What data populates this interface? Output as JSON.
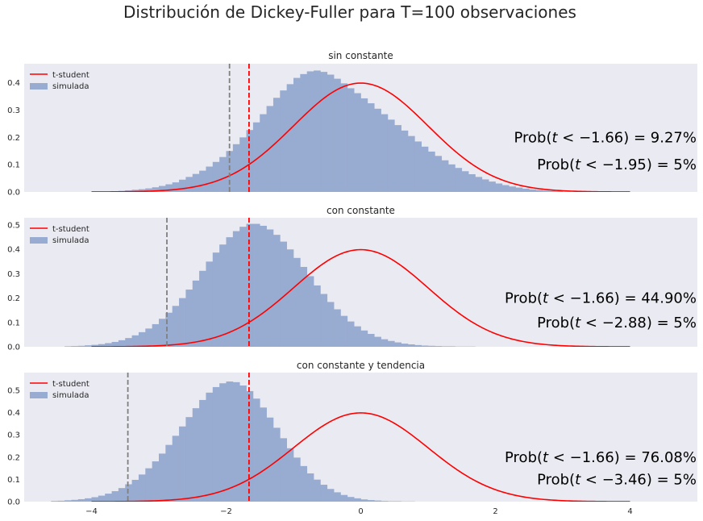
{
  "figure": {
    "title": "Distribución de Dickey-Fuller para T=100 observaciones"
  },
  "colors": {
    "background": "#eaeaf2",
    "histogram": "#98abd0",
    "pdf_line": "#ff0000",
    "observed_line": "#ff0000",
    "critical_line": "#808080"
  },
  "chart_data": [
    {
      "type": "histogram",
      "title": "sin constante",
      "xlim": [
        -5,
        5
      ],
      "ylim": [
        0,
        0.47
      ],
      "yticks": [
        0.0,
        0.1,
        0.2,
        0.3,
        0.4
      ],
      "ytick_labels": [
        "0.0",
        "0.1",
        "0.2",
        "0.3",
        "0.4"
      ],
      "grid": false,
      "legend": {
        "position": "top-left",
        "entries": [
          "t-student",
          "simulada"
        ]
      },
      "series": [
        {
          "name": "simulada",
          "kind": "histogram",
          "bin_starts": [
            -3.6,
            -3.5,
            -3.4,
            -3.3,
            -3.2,
            -3.1,
            -3.0,
            -2.9,
            -2.8,
            -2.7,
            -2.6,
            -2.5,
            -2.4,
            -2.3,
            -2.2,
            -2.1,
            -2.0,
            -1.9,
            -1.8,
            -1.7,
            -1.6,
            -1.5,
            -1.4,
            -1.3,
            -1.2,
            -1.1,
            -1.0,
            -0.9,
            -0.8,
            -0.7,
            -0.6,
            -0.5,
            -0.4,
            -0.3,
            -0.2,
            -0.1,
            0.0,
            0.1,
            0.2,
            0.3,
            0.4,
            0.5,
            0.6,
            0.7,
            0.8,
            0.9,
            1.0,
            1.1,
            1.2,
            1.3,
            1.4,
            1.5,
            1.6,
            1.7,
            1.8,
            1.9,
            2.0,
            2.1,
            2.2,
            2.3,
            2.4,
            2.5,
            2.6,
            2.7,
            2.8,
            2.9
          ],
          "bin_width": 0.1,
          "values": [
            0.004,
            0.006,
            0.008,
            0.01,
            0.013,
            0.017,
            0.022,
            0.028,
            0.035,
            0.045,
            0.055,
            0.066,
            0.078,
            0.093,
            0.11,
            0.128,
            0.15,
            0.175,
            0.2,
            0.227,
            0.255,
            0.285,
            0.315,
            0.345,
            0.372,
            0.395,
            0.418,
            0.432,
            0.442,
            0.445,
            0.44,
            0.43,
            0.415,
            0.398,
            0.38,
            0.362,
            0.343,
            0.325,
            0.305,
            0.285,
            0.265,
            0.245,
            0.225,
            0.205,
            0.185,
            0.166,
            0.148,
            0.132,
            0.116,
            0.101,
            0.088,
            0.076,
            0.065,
            0.055,
            0.046,
            0.038,
            0.031,
            0.025,
            0.02,
            0.016,
            0.012,
            0.009,
            0.007,
            0.005,
            0.004,
            0.003
          ]
        },
        {
          "name": "t-student",
          "kind": "normal_pdf",
          "x_range": [
            -4,
            4
          ],
          "mean": 0,
          "sd": 1
        }
      ],
      "vlines": [
        {
          "x": -1.66,
          "color": "red"
        },
        {
          "x": -1.95,
          "color": "gray"
        }
      ],
      "annotations": [
        {
          "value": "−1.66",
          "prob": "9.27%"
        },
        {
          "value": "−1.95",
          "prob": "5%"
        }
      ]
    },
    {
      "type": "histogram",
      "title": "con constante",
      "xlim": [
        -5,
        5
      ],
      "ylim": [
        0,
        0.53
      ],
      "yticks": [
        0.0,
        0.1,
        0.2,
        0.3,
        0.4,
        0.5
      ],
      "ytick_labels": [
        "0.0",
        "0.1",
        "0.2",
        "0.3",
        "0.4",
        "0.5"
      ],
      "grid": false,
      "legend": {
        "position": "top-left",
        "entries": [
          "t-student",
          "simulada"
        ]
      },
      "series": [
        {
          "name": "simulada",
          "kind": "histogram",
          "bin_starts": [
            -4.4,
            -4.3,
            -4.2,
            -4.1,
            -4.0,
            -3.9,
            -3.8,
            -3.7,
            -3.6,
            -3.5,
            -3.4,
            -3.3,
            -3.2,
            -3.1,
            -3.0,
            -2.9,
            -2.8,
            -2.7,
            -2.6,
            -2.5,
            -2.4,
            -2.3,
            -2.2,
            -2.1,
            -2.0,
            -1.9,
            -1.8,
            -1.7,
            -1.6,
            -1.5,
            -1.4,
            -1.3,
            -1.2,
            -1.1,
            -1.0,
            -0.9,
            -0.8,
            -0.7,
            -0.6,
            -0.5,
            -0.4,
            -0.3,
            -0.2,
            -0.1,
            0.0,
            0.1,
            0.2,
            0.3,
            0.4,
            0.5,
            0.6,
            0.7,
            0.8,
            0.9,
            1.0,
            1.1,
            1.2,
            1.3,
            1.4,
            1.5,
            1.6
          ],
          "bin_width": 0.1,
          "values": [
            0.002,
            0.003,
            0.004,
            0.006,
            0.008,
            0.011,
            0.015,
            0.02,
            0.027,
            0.036,
            0.047,
            0.06,
            0.075,
            0.093,
            0.115,
            0.14,
            0.168,
            0.2,
            0.235,
            0.272,
            0.312,
            0.35,
            0.387,
            0.42,
            0.45,
            0.475,
            0.493,
            0.505,
            0.505,
            0.497,
            0.482,
            0.46,
            0.432,
            0.4,
            0.365,
            0.328,
            0.29,
            0.252,
            0.217,
            0.184,
            0.154,
            0.127,
            0.104,
            0.084,
            0.067,
            0.053,
            0.041,
            0.031,
            0.024,
            0.018,
            0.013,
            0.01,
            0.007,
            0.005,
            0.004,
            0.003,
            0.002,
            0.002,
            0.001,
            0.001,
            0.001
          ]
        },
        {
          "name": "t-student",
          "kind": "normal_pdf",
          "x_range": [
            -4,
            4
          ],
          "mean": 0,
          "sd": 1
        }
      ],
      "vlines": [
        {
          "x": -1.66,
          "color": "red"
        },
        {
          "x": -2.88,
          "color": "gray"
        }
      ],
      "annotations": [
        {
          "value": "−1.66",
          "prob": "44.90%"
        },
        {
          "value": "−2.88",
          "prob": "5%"
        }
      ]
    },
    {
      "type": "histogram",
      "title": "con constante y tendencia",
      "xlim": [
        -5,
        5
      ],
      "ylim": [
        0,
        0.58
      ],
      "yticks": [
        0.0,
        0.1,
        0.2,
        0.3,
        0.4,
        0.5
      ],
      "ytick_labels": [
        "0.0",
        "0.1",
        "0.2",
        "0.3",
        "0.4",
        "0.5"
      ],
      "xticks": [
        -4,
        -2,
        0,
        2,
        4
      ],
      "xtick_labels": [
        "−4",
        "−2",
        "0",
        "2",
        "4"
      ],
      "grid": false,
      "legend": {
        "position": "top-left",
        "entries": [
          "t-student",
          "simulada"
        ]
      },
      "series": [
        {
          "name": "simulada",
          "kind": "histogram",
          "bin_starts": [
            -4.6,
            -4.5,
            -4.4,
            -4.3,
            -4.2,
            -4.1,
            -4.0,
            -3.9,
            -3.8,
            -3.7,
            -3.6,
            -3.5,
            -3.4,
            -3.3,
            -3.2,
            -3.1,
            -3.0,
            -2.9,
            -2.8,
            -2.7,
            -2.6,
            -2.5,
            -2.4,
            -2.3,
            -2.2,
            -2.1,
            -2.0,
            -1.9,
            -1.8,
            -1.7,
            -1.6,
            -1.5,
            -1.4,
            -1.3,
            -1.2,
            -1.1,
            -1.0,
            -0.9,
            -0.8,
            -0.7,
            -0.6,
            -0.5,
            -0.4,
            -0.3,
            -0.2,
            -0.1,
            0.0,
            0.1,
            0.2,
            0.3,
            0.4,
            0.5,
            0.6,
            0.7
          ],
          "bin_width": 0.1,
          "values": [
            0.003,
            0.004,
            0.006,
            0.008,
            0.011,
            0.015,
            0.02,
            0.027,
            0.036,
            0.047,
            0.061,
            0.078,
            0.098,
            0.122,
            0.15,
            0.181,
            0.216,
            0.255,
            0.296,
            0.338,
            0.38,
            0.42,
            0.457,
            0.49,
            0.515,
            0.532,
            0.54,
            0.537,
            0.522,
            0.497,
            0.463,
            0.423,
            0.378,
            0.332,
            0.285,
            0.24,
            0.198,
            0.16,
            0.127,
            0.099,
            0.076,
            0.057,
            0.042,
            0.03,
            0.021,
            0.015,
            0.01,
            0.007,
            0.005,
            0.003,
            0.002,
            0.002,
            0.001,
            0.001
          ]
        },
        {
          "name": "t-student",
          "kind": "normal_pdf",
          "x_range": [
            -4,
            4
          ],
          "mean": 0,
          "sd": 1
        }
      ],
      "vlines": [
        {
          "x": -1.66,
          "color": "red"
        },
        {
          "x": -3.46,
          "color": "gray"
        }
      ],
      "annotations": [
        {
          "value": "−1.66",
          "prob": "76.08%"
        },
        {
          "value": "−3.46",
          "prob": "5%"
        }
      ]
    }
  ]
}
